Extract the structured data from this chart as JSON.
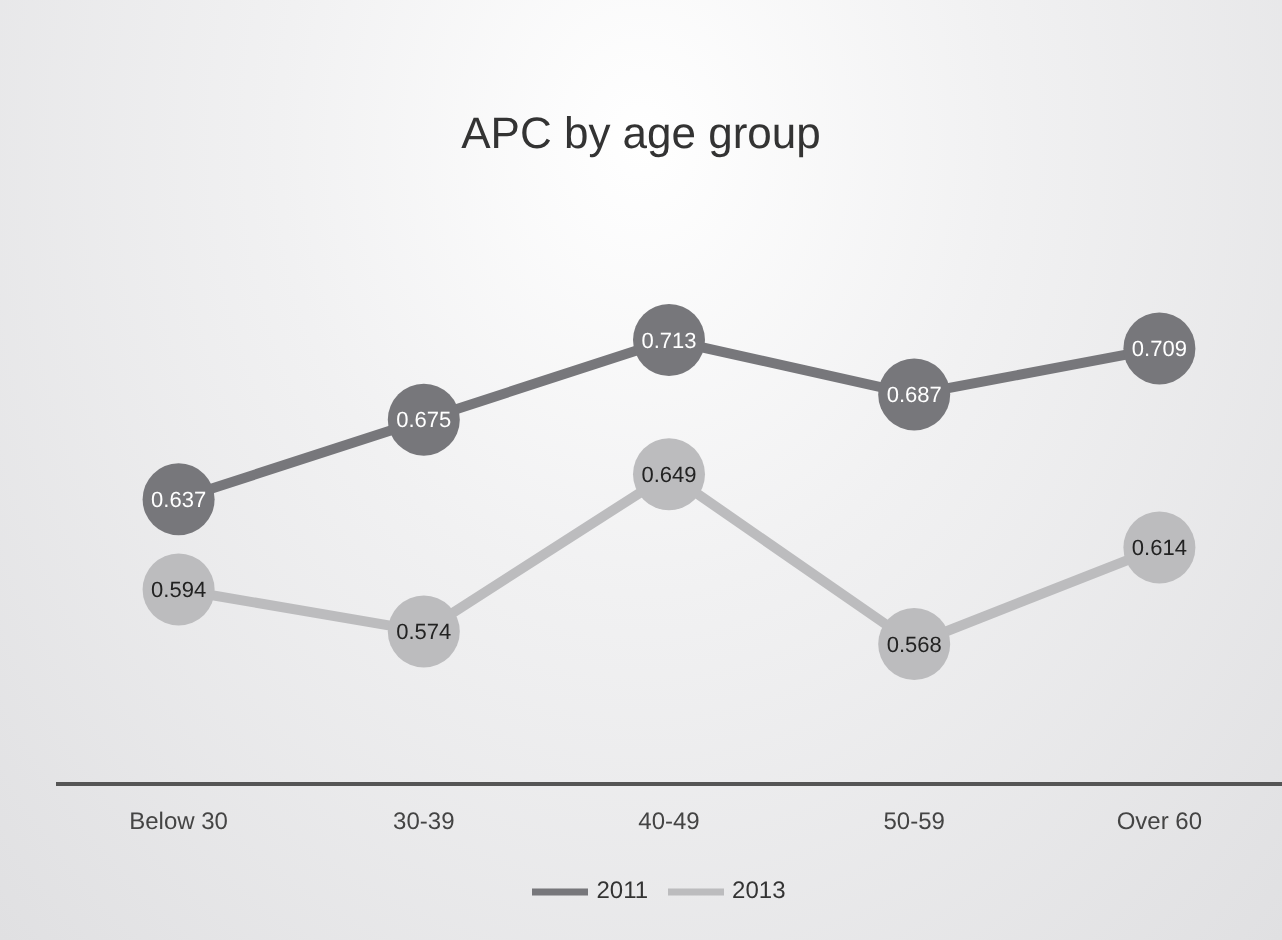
{
  "chart_data": {
    "type": "line",
    "title": "APC by age group",
    "categories": [
      "Below 30",
      "30-39",
      "40-49",
      "50-59",
      "Over 60"
    ],
    "series": [
      {
        "name": "2011",
        "color": "#77777b",
        "values": [
          0.637,
          0.675,
          0.713,
          0.687,
          0.709
        ]
      },
      {
        "name": "2013",
        "color": "#bcbcbe",
        "values": [
          0.594,
          0.574,
          0.649,
          0.568,
          0.614
        ]
      }
    ],
    "data_labels": true,
    "marker": "circle",
    "legend": "bottom",
    "grid": false
  }
}
